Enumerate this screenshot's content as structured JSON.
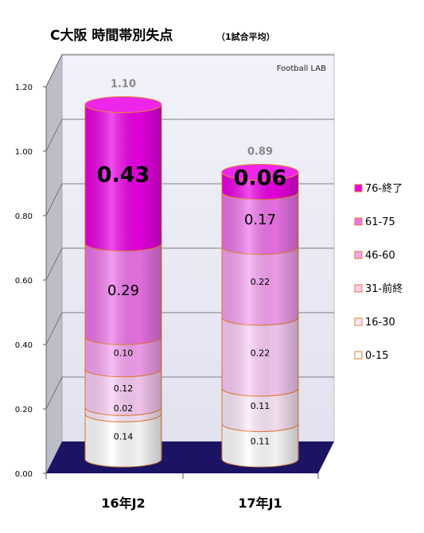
{
  "chart_data": {
    "type": "bar",
    "stacked": true,
    "title": "C大阪 時間帯別失点",
    "subtitle": "（1試合平均）",
    "watermark": "Football LAB",
    "categories": [
      "16年J2",
      "17年J1"
    ],
    "totals": [
      "1.10",
      "0.89"
    ],
    "ylim": [
      0,
      1.2
    ],
    "yticks": [
      0,
      0.2,
      0.4,
      0.6,
      0.8,
      1.0,
      1.2
    ],
    "ytick_labels": [
      "0.00",
      "0.20",
      "0.40",
      "0.60",
      "0.80",
      "1.00",
      "1.20"
    ],
    "grid": true,
    "legend_position": "right",
    "series": [
      {
        "name": "0-15",
        "color": "#ffffff",
        "values": [
          0.14,
          0.11
        ],
        "labels": [
          "0.14",
          "0.11"
        ]
      },
      {
        "name": "16-30",
        "color": "#fde9fb",
        "values": [
          0.02,
          0.11
        ],
        "labels": [
          "0.02",
          "0.11"
        ]
      },
      {
        "name": "31-前終",
        "color": "#fbcdf7",
        "values": [
          0.12,
          0.22
        ],
        "labels": [
          "0.12",
          "0.22"
        ]
      },
      {
        "name": "46-60",
        "color": "#f6a2f1",
        "values": [
          0.1,
          0.22
        ],
        "labels": [
          "0.10",
          "0.22"
        ]
      },
      {
        "name": "61-75",
        "color": "#ee74ea",
        "values": [
          0.29,
          0.17
        ],
        "labels": [
          "0.29",
          "0.17"
        ]
      },
      {
        "name": "76-終了",
        "color": "#ec00e6",
        "values": [
          0.43,
          0.06
        ],
        "labels": [
          "0.43",
          "0.06"
        ]
      }
    ]
  }
}
